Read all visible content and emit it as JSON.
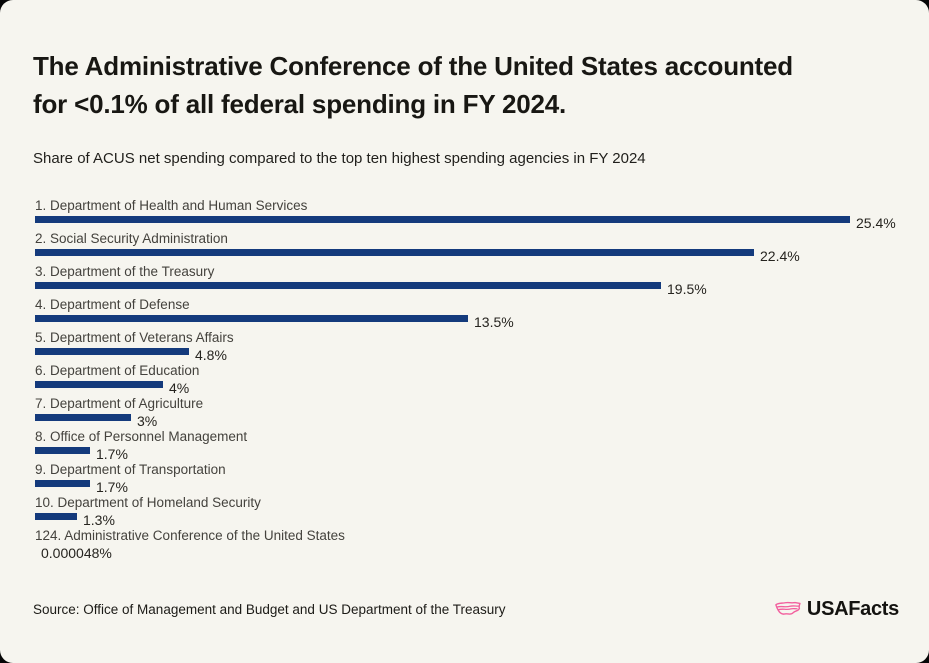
{
  "header": {
    "title_lines": [
      "The Administrative Conference of the United States accounted",
      "for <0.1% of all federal spending in FY 2024."
    ],
    "subtitle": "Share of ACUS net spending compared to the top ten highest spending agencies in FY 2024"
  },
  "chart_data": {
    "type": "bar",
    "orientation": "horizontal",
    "title": "The Administrative Conference of the United States accounted for <0.1% of all federal spending in FY 2024.",
    "subtitle": "Share of ACUS net spending compared to the top ten highest spending agencies in FY 2024",
    "unit": "%",
    "xlim": [
      0,
      25.4
    ],
    "grid": false,
    "legend": false,
    "bar_color": "#143a7c",
    "bars": [
      {
        "rank": "1",
        "name": "Department of Health and Human Services",
        "value": 25.4,
        "value_label": "25.4%"
      },
      {
        "rank": "2",
        "name": "Social Security Administration",
        "value": 22.4,
        "value_label": "22.4%"
      },
      {
        "rank": "3",
        "name": "Department of the Treasury",
        "value": 19.5,
        "value_label": "19.5%"
      },
      {
        "rank": "4",
        "name": "Department of Defense",
        "value": 13.5,
        "value_label": "13.5%"
      },
      {
        "rank": "5",
        "name": "Department of Veterans Affairs",
        "value": 4.8,
        "value_label": "4.8%"
      },
      {
        "rank": "6",
        "name": "Department of Education",
        "value": 4,
        "value_label": "4%"
      },
      {
        "rank": "7",
        "name": "Department of Agriculture",
        "value": 3,
        "value_label": "3%"
      },
      {
        "rank": "8",
        "name": "Office of Personnel Management",
        "value": 1.7,
        "value_label": "1.7%"
      },
      {
        "rank": "9",
        "name": "Department of Transportation",
        "value": 1.7,
        "value_label": "1.7%"
      },
      {
        "rank": "10",
        "name": "Department of Homeland Security",
        "value": 1.3,
        "value_label": "1.3%"
      },
      {
        "rank": "124",
        "name": "Administrative Conference of the United States",
        "value": 4.8e-05,
        "value_label": "0.000048%"
      }
    ]
  },
  "footer": {
    "source": "Source: Office of Management and Budget and US Department of the Treasury",
    "logo_text": "USAFacts"
  },
  "colors": {
    "card_background": "#f6f5ef",
    "outer_background": "#060606",
    "bar_blue": "#143a7c",
    "logo_pink": "#f2609e",
    "title_text": "#181713",
    "label_text": "#44423d"
  }
}
